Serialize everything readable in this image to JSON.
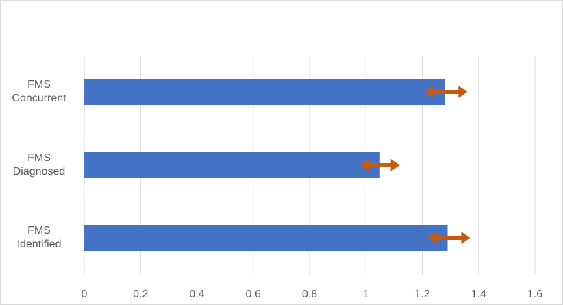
{
  "chart_data": {
    "type": "bar",
    "orientation": "horizontal",
    "title": "",
    "xlabel": "",
    "ylabel": "",
    "xlim": [
      0,
      1.6
    ],
    "x_ticks": [
      0,
      0.2,
      0.4,
      0.6,
      0.8,
      1,
      1.2,
      1.4,
      1.6
    ],
    "x_tick_labels": [
      "0",
      "0.2",
      "0.4",
      "0.6",
      "0.8",
      "1",
      "1.2",
      "1.4",
      "1.6"
    ],
    "grid": "vertical",
    "legend": "none",
    "categories": [
      [
        "FMS",
        "Concurrent"
      ],
      [
        "FMS",
        "Diagnosed"
      ],
      [
        "FMS",
        "Identified"
      ]
    ],
    "values": [
      1.28,
      1.05,
      1.29
    ],
    "error_ranges": [
      [
        1.21,
        1.36
      ],
      [
        0.98,
        1.12
      ],
      [
        1.22,
        1.37
      ]
    ],
    "bar_color": "#4472C4",
    "error_color": "#C55A11",
    "grid_color": "#d9d9d9"
  }
}
